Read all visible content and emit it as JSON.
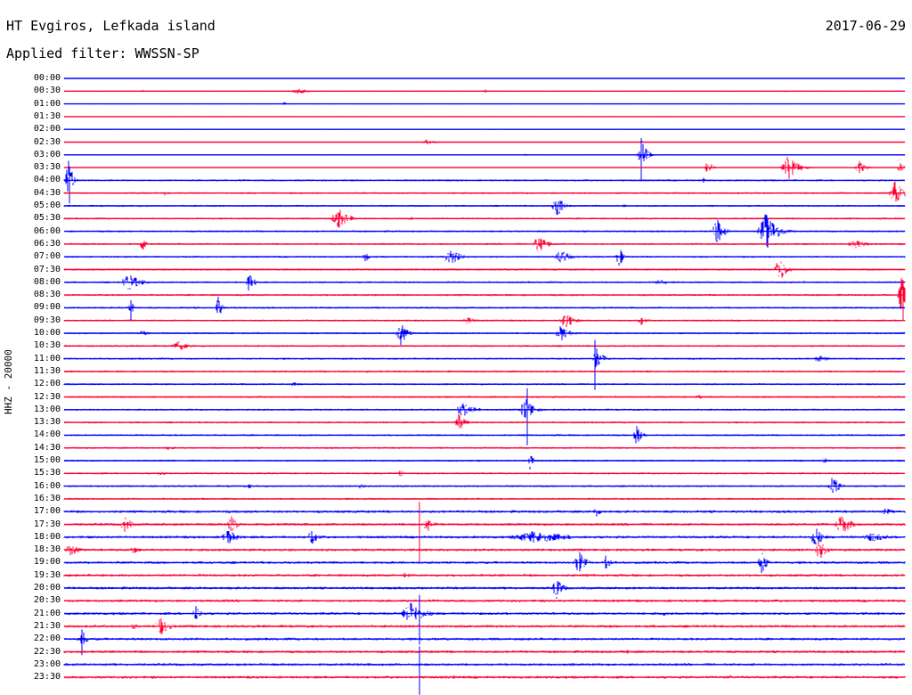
{
  "header": {
    "station": "HT Evgiros, Lefkada island",
    "date": "2017-06-29",
    "filter": "Applied filter: WWSSN-SP"
  },
  "channel_label": "HHZ - 20000",
  "colors": {
    "trace_a": "#0000ff",
    "trace_b": "#ff0033",
    "background": "#ffffff"
  },
  "traces": [
    {
      "time": "00:00"
    },
    {
      "time": "00:30"
    },
    {
      "time": "01:00"
    },
    {
      "time": "01:30"
    },
    {
      "time": "02:00"
    },
    {
      "time": "02:30"
    },
    {
      "time": "03:00"
    },
    {
      "time": "03:30"
    },
    {
      "time": "04:00"
    },
    {
      "time": "04:30"
    },
    {
      "time": "05:00"
    },
    {
      "time": "05:30"
    },
    {
      "time": "06:00"
    },
    {
      "time": "06:30"
    },
    {
      "time": "07:00"
    },
    {
      "time": "07:30"
    },
    {
      "time": "08:00"
    },
    {
      "time": "08:30"
    },
    {
      "time": "09:00"
    },
    {
      "time": "09:30"
    },
    {
      "time": "10:00"
    },
    {
      "time": "10:30"
    },
    {
      "time": "11:00"
    },
    {
      "time": "11:30"
    },
    {
      "time": "12:00"
    },
    {
      "time": "12:30"
    },
    {
      "time": "13:00"
    },
    {
      "time": "13:30"
    },
    {
      "time": "14:00"
    },
    {
      "time": "14:30"
    },
    {
      "time": "15:00"
    },
    {
      "time": "15:30"
    },
    {
      "time": "16:00"
    },
    {
      "time": "16:30"
    },
    {
      "time": "17:00"
    },
    {
      "time": "17:30"
    },
    {
      "time": "18:00"
    },
    {
      "time": "18:30"
    },
    {
      "time": "19:00"
    },
    {
      "time": "19:30"
    },
    {
      "time": "20:00"
    },
    {
      "time": "20:30"
    },
    {
      "time": "21:00"
    },
    {
      "time": "21:30"
    },
    {
      "time": "22:00"
    },
    {
      "time": "22:30"
    },
    {
      "time": "23:00"
    },
    {
      "time": "23:30"
    }
  ]
}
